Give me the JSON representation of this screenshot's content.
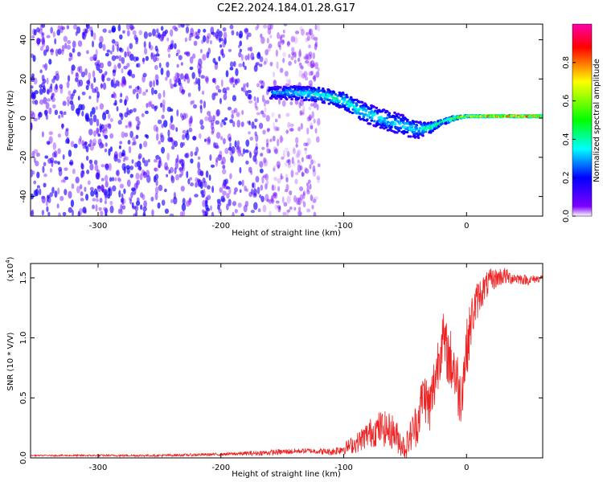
{
  "figure_title": "C2E2.2024.184.01.28.G17",
  "chart_data": [
    {
      "type": "heatmap",
      "xlabel": "Height of straight line (km)",
      "ylabel": "Frequency (Hz)",
      "xlim": [
        -355,
        62
      ],
      "ylim": [
        -50,
        48
      ],
      "xticks": [
        -300,
        -200,
        -100,
        0
      ],
      "yticks": [
        -40,
        -20,
        0,
        20,
        40
      ],
      "colorbar": {
        "label": "Normalized spectral amplitude",
        "range": [
          0,
          1
        ],
        "ticks": [
          "0.0",
          "0.2",
          "0.4",
          "0.6",
          "0.8"
        ],
        "colormap": [
          "#ffffff",
          "#7f00ff",
          "#0000ff",
          "#00ffff",
          "#00ff00",
          "#ffff00",
          "#ff0000",
          "#ff00aa"
        ]
      },
      "noise_region": {
        "x": [
          -355,
          -120
        ],
        "amplitude": 0.15,
        "faint_band_x": [
          -165,
          -118
        ]
      },
      "signal_trace": {
        "x": [
          -160,
          -140,
          -120,
          -100,
          -90,
          -80,
          -70,
          -60,
          -50,
          -40,
          -30,
          -20,
          -10,
          0,
          20,
          40,
          62
        ],
        "frequency": [
          13,
          13,
          12,
          9,
          5,
          2,
          0,
          -2,
          -4,
          -6,
          -5,
          -2,
          0,
          1,
          1,
          1,
          1
        ],
        "amplitude": [
          0.3,
          0.35,
          0.4,
          0.42,
          0.4,
          0.38,
          0.38,
          0.37,
          0.36,
          0.35,
          0.45,
          0.5,
          0.6,
          0.75,
          0.85,
          0.9,
          0.9
        ],
        "spread_hz": [
          6,
          7,
          7,
          8,
          9,
          10,
          10,
          10,
          10,
          9,
          5,
          3,
          2,
          1,
          1,
          1,
          1
        ]
      }
    },
    {
      "type": "line",
      "xlabel": "Height of straight line (km)",
      "ylabel": "SNR (10 * V/V)",
      "yscale_label": "(x10",
      "yscale_exp": "4",
      "yscale_close": ")",
      "xlim": [
        -355,
        62
      ],
      "ylim": [
        0,
        1.62
      ],
      "xticks": [
        -300,
        -200,
        -100,
        0
      ],
      "yticks": [
        "0.0",
        "0.5",
        "1.0",
        "1.5"
      ],
      "color": "#ee2222",
      "series": [
        {
          "x": [
            -355,
            -300,
            -250,
            -200,
            -170,
            -150,
            -130,
            -110,
            -100,
            -90,
            -80,
            -70,
            -60,
            -50,
            -45,
            -40,
            -35,
            -30,
            -25,
            -20,
            -15,
            -10,
            -5,
            0,
            5,
            10,
            15,
            20,
            25,
            30,
            35,
            40,
            50,
            62
          ],
          "values": [
            0.02,
            0.02,
            0.02,
            0.03,
            0.04,
            0.05,
            0.06,
            0.05,
            0.08,
            0.12,
            0.2,
            0.25,
            0.22,
            0.08,
            0.2,
            0.3,
            0.55,
            0.4,
            0.7,
            1.0,
            0.85,
            0.75,
            0.5,
            0.9,
            1.2,
            1.35,
            1.42,
            1.48,
            1.5,
            1.52,
            1.5,
            1.5,
            1.48,
            1.5
          ],
          "noise": [
            0.005,
            0.008,
            0.01,
            0.012,
            0.02,
            0.025,
            0.02,
            0.03,
            0.05,
            0.08,
            0.12,
            0.15,
            0.15,
            0.1,
            0.15,
            0.2,
            0.2,
            0.25,
            0.25,
            0.25,
            0.25,
            0.3,
            0.25,
            0.25,
            0.2,
            0.15,
            0.12,
            0.1,
            0.08,
            0.08,
            0.06,
            0.05,
            0.04,
            0.03
          ]
        }
      ]
    }
  ]
}
